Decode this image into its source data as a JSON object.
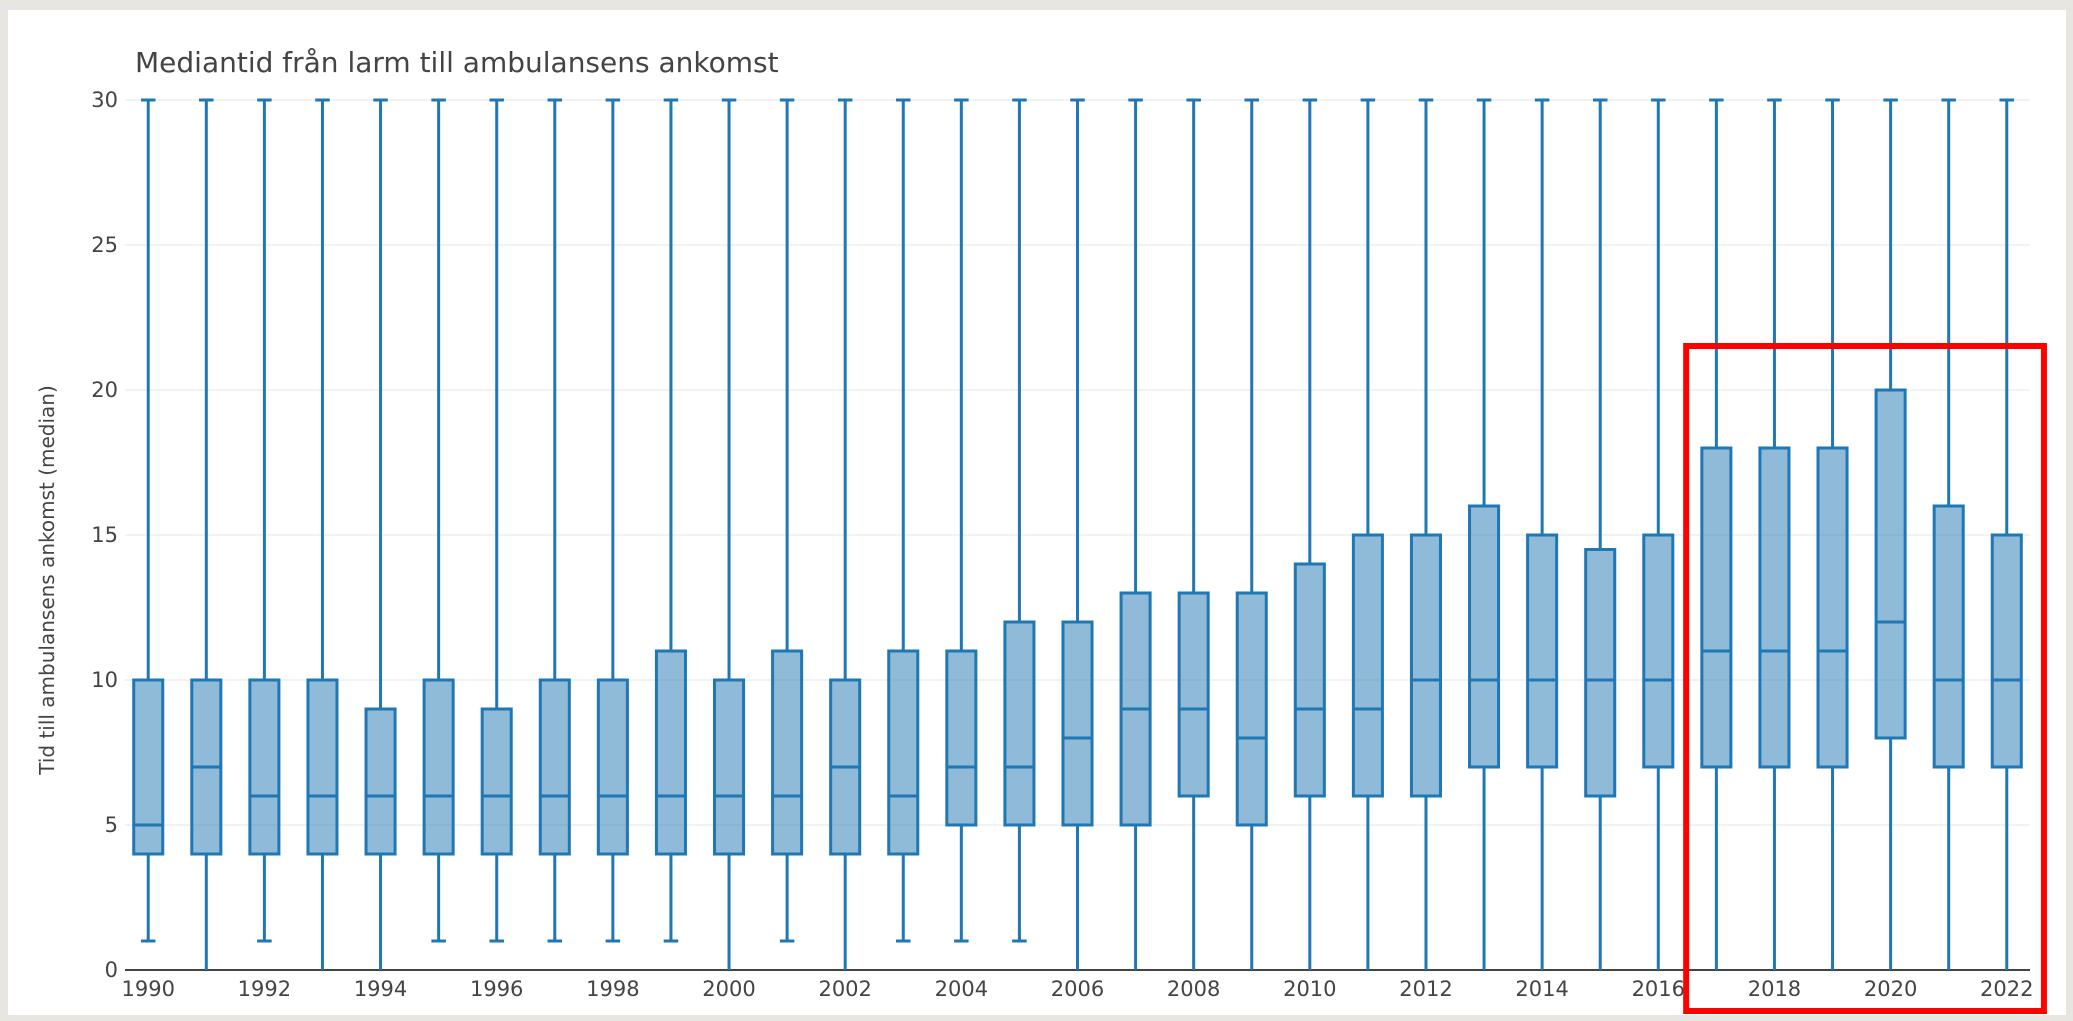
{
  "chart_data": {
    "type": "box",
    "title": "Mediantid från larm till ambulansens ankomst",
    "xlabel": "",
    "ylabel": "Tid till ambulansens ankomst (median)",
    "ylim": [
      0,
      30
    ],
    "xlim": [
      1989.6,
      2022.4
    ],
    "y_ticks": [
      0,
      5,
      10,
      15,
      20,
      25,
      30
    ],
    "x_tick_labels": [
      "1990",
      "1992",
      "1994",
      "1996",
      "1998",
      "2000",
      "2002",
      "2004",
      "2006",
      "2008",
      "2010",
      "2012",
      "2014",
      "2016",
      "2018",
      "2020",
      "2022"
    ],
    "grid": true,
    "color": "#1f77b4",
    "fill": "#1f77b4",
    "fill_opacity": 0.5,
    "highlight": {
      "x_from": 2017,
      "x_to": 2022,
      "color": "#ff0000"
    },
    "boxes": [
      {
        "x": 1990,
        "low": 1,
        "q1": 4,
        "median": 5,
        "q3": 10,
        "high": 30
      },
      {
        "x": 1991,
        "low": 0,
        "q1": 4,
        "median": 7,
        "q3": 10,
        "high": 30
      },
      {
        "x": 1992,
        "low": 1,
        "q1": 4,
        "median": 6,
        "q3": 10,
        "high": 30
      },
      {
        "x": 1993,
        "low": 0,
        "q1": 4,
        "median": 6,
        "q3": 10,
        "high": 30
      },
      {
        "x": 1994,
        "low": 0,
        "q1": 4,
        "median": 6,
        "q3": 9,
        "high": 30
      },
      {
        "x": 1995,
        "low": 1,
        "q1": 4,
        "median": 6,
        "q3": 10,
        "high": 30
      },
      {
        "x": 1996,
        "low": 1,
        "q1": 4,
        "median": 6,
        "q3": 9,
        "high": 30
      },
      {
        "x": 1997,
        "low": 1,
        "q1": 4,
        "median": 6,
        "q3": 10,
        "high": 30
      },
      {
        "x": 1998,
        "low": 1,
        "q1": 4,
        "median": 6,
        "q3": 10,
        "high": 30
      },
      {
        "x": 1999,
        "low": 1,
        "q1": 4,
        "median": 6,
        "q3": 11,
        "high": 30
      },
      {
        "x": 2000,
        "low": 0,
        "q1": 4,
        "median": 6,
        "q3": 10,
        "high": 30
      },
      {
        "x": 2001,
        "low": 1,
        "q1": 4,
        "median": 6,
        "q3": 11,
        "high": 30
      },
      {
        "x": 2002,
        "low": 0,
        "q1": 4,
        "median": 7,
        "q3": 10,
        "high": 30
      },
      {
        "x": 2003,
        "low": 1,
        "q1": 4,
        "median": 6,
        "q3": 11,
        "high": 30
      },
      {
        "x": 2004,
        "low": 1,
        "q1": 5,
        "median": 7,
        "q3": 11,
        "high": 30
      },
      {
        "x": 2005,
        "low": 1,
        "q1": 5,
        "median": 7,
        "q3": 12,
        "high": 30
      },
      {
        "x": 2006,
        "low": 0,
        "q1": 5,
        "median": 8,
        "q3": 12,
        "high": 30
      },
      {
        "x": 2007,
        "low": 0,
        "q1": 5,
        "median": 9,
        "q3": 13,
        "high": 30
      },
      {
        "x": 2008,
        "low": 0,
        "q1": 6,
        "median": 9,
        "q3": 13,
        "high": 30
      },
      {
        "x": 2009,
        "low": 0,
        "q1": 5,
        "median": 8,
        "q3": 13,
        "high": 30
      },
      {
        "x": 2010,
        "low": 0,
        "q1": 6,
        "median": 9,
        "q3": 14,
        "high": 30
      },
      {
        "x": 2011,
        "low": 0,
        "q1": 6,
        "median": 9,
        "q3": 15,
        "high": 30
      },
      {
        "x": 2012,
        "low": 0,
        "q1": 6,
        "median": 10,
        "q3": 15,
        "high": 30
      },
      {
        "x": 2013,
        "low": 0,
        "q1": 7,
        "median": 10,
        "q3": 16,
        "high": 30
      },
      {
        "x": 2014,
        "low": 0,
        "q1": 7,
        "median": 10,
        "q3": 15,
        "high": 30
      },
      {
        "x": 2015,
        "low": 0,
        "q1": 6,
        "median": 10,
        "q3": 14.5,
        "high": 30
      },
      {
        "x": 2016,
        "low": 0,
        "q1": 7,
        "median": 10,
        "q3": 15,
        "high": 30
      },
      {
        "x": 2017,
        "low": 0,
        "q1": 7,
        "median": 11,
        "q3": 18,
        "high": 30
      },
      {
        "x": 2018,
        "low": 0,
        "q1": 7,
        "median": 11,
        "q3": 18,
        "high": 30
      },
      {
        "x": 2019,
        "low": 0,
        "q1": 7,
        "median": 11,
        "q3": 18,
        "high": 30
      },
      {
        "x": 2020,
        "low": 0,
        "q1": 8,
        "median": 12,
        "q3": 20,
        "high": 30
      },
      {
        "x": 2021,
        "low": 0,
        "q1": 7,
        "median": 10,
        "q3": 16,
        "high": 30
      },
      {
        "x": 2022,
        "low": 0,
        "q1": 7,
        "median": 10,
        "q3": 15,
        "high": 30
      }
    ]
  }
}
